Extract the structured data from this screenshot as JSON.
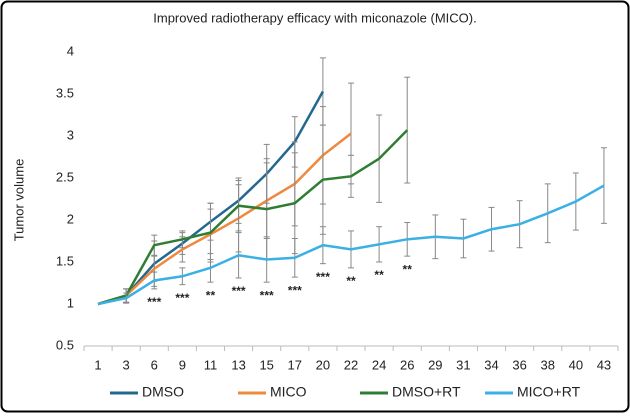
{
  "chart_data": {
    "type": "line",
    "title": "Improved radiotherapy efficacy with miconazole (MICO).",
    "y_label": "Tumor volume",
    "categories": [
      "1",
      "3",
      "6",
      "9",
      "11",
      "13",
      "15",
      "17",
      "20",
      "22",
      "24",
      "26",
      "29",
      "31",
      "34",
      "36",
      "38",
      "40",
      "43"
    ],
    "ylim": [
      0.5,
      4
    ],
    "yticks": [
      0.5,
      1,
      1.5,
      2,
      2.5,
      3,
      3.5,
      4
    ],
    "grid": false,
    "legend": "bottom",
    "series": [
      {
        "name": "DMSO",
        "color": "#23698f",
        "values": [
          1,
          1.1,
          1.48,
          1.72,
          1.98,
          2.23,
          2.55,
          2.93,
          3.53,
          null,
          null,
          null,
          null,
          null,
          null,
          null,
          null,
          null,
          null
        ],
        "errors": [
          0,
          0.08,
          0.27,
          0.13,
          0.22,
          0.27,
          0.35,
          0.3,
          0.4,
          null,
          null,
          null,
          null,
          null,
          null,
          null,
          null,
          null,
          null
        ]
      },
      {
        "name": "MICO",
        "color": "#f0883e",
        "values": [
          1,
          1.1,
          1.42,
          1.65,
          1.83,
          2.02,
          2.23,
          2.43,
          2.77,
          3.03,
          null,
          null,
          null,
          null,
          null,
          null,
          null,
          null,
          null
        ],
        "errors": [
          0,
          0.08,
          0.15,
          0.15,
          0.3,
          0.4,
          0.45,
          0.5,
          0.58,
          0.6,
          null,
          null,
          null,
          null,
          null,
          null,
          null,
          null,
          null
        ]
      },
      {
        "name": "DMSO+RT",
        "color": "#2f7d32",
        "values": [
          1,
          1.1,
          1.7,
          1.77,
          1.85,
          2.17,
          2.13,
          2.2,
          2.48,
          2.52,
          2.73,
          3.07,
          null,
          null,
          null,
          null,
          null,
          null,
          null
        ],
        "errors": [
          0,
          0.08,
          0.12,
          0.1,
          0.35,
          0.3,
          0.6,
          0.6,
          0.65,
          0.25,
          0.52,
          0.63,
          null,
          null,
          null,
          null,
          null,
          null,
          null
        ]
      },
      {
        "name": "MICO+RT",
        "color": "#3ab0e4",
        "values": [
          1,
          1.07,
          1.28,
          1.33,
          1.43,
          1.58,
          1.53,
          1.55,
          1.7,
          1.65,
          1.71,
          1.77,
          1.8,
          1.78,
          1.89,
          1.95,
          2.08,
          2.22,
          2.41
        ],
        "errors": [
          0,
          0.06,
          0.1,
          0.1,
          0.17,
          0.27,
          0.27,
          0.23,
          0.22,
          0.22,
          0.21,
          0.2,
          0.26,
          0.23,
          0.26,
          0.28,
          0.35,
          0.34,
          0.45
        ]
      }
    ],
    "significance": [
      null,
      null,
      "***",
      "***",
      "**",
      "***",
      "***",
      "***",
      "***",
      "**",
      "**",
      "**",
      null,
      null,
      null,
      null,
      null,
      null,
      null
    ]
  }
}
